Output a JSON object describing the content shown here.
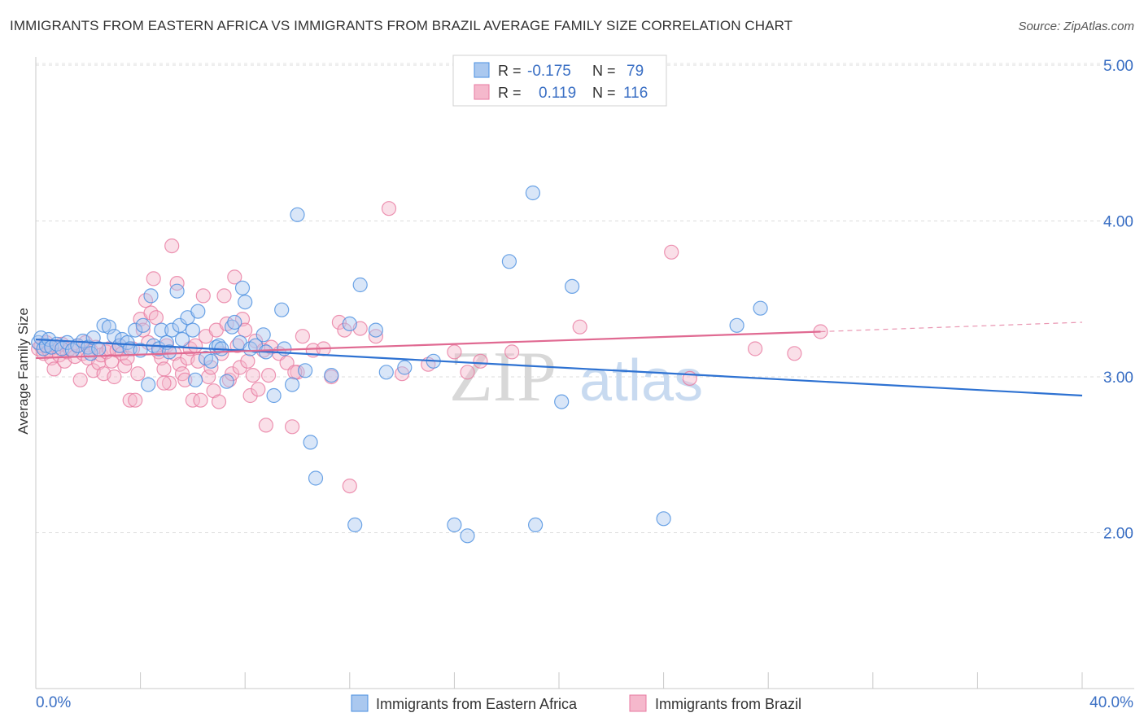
{
  "header": {
    "title": "IMMIGRANTS FROM EASTERN AFRICA VS IMMIGRANTS FROM BRAZIL AVERAGE FAMILY SIZE CORRELATION CHART",
    "source": "Source: ZipAtlas.com"
  },
  "watermark": {
    "zip": "ZIP",
    "atlas": "atlas"
  },
  "legend_box": {
    "rows": [
      {
        "r_label": "R =",
        "r_value": "-0.175",
        "n_label": "N =",
        "n_value": "79"
      },
      {
        "r_label": "R =",
        "r_value": "0.119",
        "n_label": "N =",
        "n_value": "116"
      }
    ]
  },
  "chart_data": {
    "type": "scatter",
    "ylabel": "Average Family Size",
    "x_tick_labels": [
      "0.0%",
      "40.0%"
    ],
    "y_tick_labels": [
      "5.00",
      "4.00",
      "3.00",
      "2.00"
    ],
    "y_ticks": [
      5.0,
      4.0,
      3.0,
      2.0
    ],
    "xlim": [
      0,
      40
    ],
    "ylim": [
      1.0,
      5.1
    ],
    "grid": true,
    "legend_position": "top-center",
    "colors": {
      "blue": "#4a8fe0",
      "pink": "#e87aa0",
      "blue_fill": "#aac8ef",
      "pink_fill": "#f5b8cc",
      "blue_line": "#2e72d2",
      "pink_line": "#e06a92"
    },
    "series": [
      {
        "name": "Immigrants from Eastern Africa",
        "color": "#4a8fe0",
        "trend": {
          "x": [
            0,
            40
          ],
          "y": [
            3.24,
            2.88
          ]
        },
        "points": [
          [
            0.1,
            3.22
          ],
          [
            0.2,
            3.25
          ],
          [
            0.3,
            3.18
          ],
          [
            0.4,
            3.2
          ],
          [
            0.5,
            3.24
          ],
          [
            0.6,
            3.19
          ],
          [
            0.8,
            3.21
          ],
          [
            1.0,
            3.18
          ],
          [
            1.2,
            3.22
          ],
          [
            1.4,
            3.17
          ],
          [
            1.6,
            3.2
          ],
          [
            1.8,
            3.23
          ],
          [
            2.0,
            3.19
          ],
          [
            2.1,
            3.15
          ],
          [
            2.2,
            3.25
          ],
          [
            2.4,
            3.18
          ],
          [
            2.6,
            3.33
          ],
          [
            2.8,
            3.32
          ],
          [
            3.0,
            3.26
          ],
          [
            3.2,
            3.2
          ],
          [
            3.3,
            3.24
          ],
          [
            3.5,
            3.22
          ],
          [
            3.6,
            3.18
          ],
          [
            3.8,
            3.3
          ],
          [
            4.0,
            3.17
          ],
          [
            4.1,
            3.33
          ],
          [
            4.3,
            2.95
          ],
          [
            4.4,
            3.52
          ],
          [
            4.5,
            3.2
          ],
          [
            4.7,
            3.18
          ],
          [
            4.8,
            3.3
          ],
          [
            5.0,
            3.22
          ],
          [
            5.1,
            3.16
          ],
          [
            5.2,
            3.3
          ],
          [
            5.4,
            3.55
          ],
          [
            5.5,
            3.33
          ],
          [
            5.6,
            3.24
          ],
          [
            5.8,
            3.38
          ],
          [
            6.0,
            3.3
          ],
          [
            6.1,
            2.98
          ],
          [
            6.2,
            3.42
          ],
          [
            6.5,
            3.12
          ],
          [
            6.7,
            3.1
          ],
          [
            6.9,
            3.19
          ],
          [
            7.0,
            3.2
          ],
          [
            7.1,
            3.18
          ],
          [
            7.3,
            2.97
          ],
          [
            7.5,
            3.32
          ],
          [
            7.6,
            3.35
          ],
          [
            7.8,
            3.22
          ],
          [
            7.9,
            3.57
          ],
          [
            8.0,
            3.48
          ],
          [
            8.2,
            3.18
          ],
          [
            8.4,
            3.2
          ],
          [
            8.7,
            3.27
          ],
          [
            8.8,
            3.16
          ],
          [
            9.1,
            2.88
          ],
          [
            9.4,
            3.43
          ],
          [
            9.5,
            3.18
          ],
          [
            9.8,
            2.95
          ],
          [
            10.0,
            4.04
          ],
          [
            10.3,
            3.04
          ],
          [
            10.5,
            2.58
          ],
          [
            10.7,
            2.35
          ],
          [
            11.3,
            3.01
          ],
          [
            12.0,
            3.34
          ],
          [
            12.2,
            2.05
          ],
          [
            12.4,
            3.59
          ],
          [
            13.0,
            3.3
          ],
          [
            13.4,
            3.03
          ],
          [
            14.1,
            3.06
          ],
          [
            15.2,
            3.1
          ],
          [
            16.0,
            2.05
          ],
          [
            16.5,
            1.98
          ],
          [
            18.1,
            3.74
          ],
          [
            19.0,
            4.18
          ],
          [
            19.1,
            2.05
          ],
          [
            20.1,
            2.84
          ],
          [
            20.5,
            3.58
          ],
          [
            24.0,
            2.09
          ],
          [
            26.8,
            3.33
          ],
          [
            27.7,
            3.44
          ]
        ]
      },
      {
        "name": "Immigrants from Brazil",
        "color": "#e87aa0",
        "trend": {
          "x": [
            0,
            30
          ],
          "y": [
            3.12,
            3.29
          ],
          "dashed_to": [
            40,
            3.35
          ]
        },
        "points": [
          [
            0.1,
            3.18
          ],
          [
            0.2,
            3.2
          ],
          [
            0.3,
            3.15
          ],
          [
            0.4,
            3.22
          ],
          [
            0.5,
            3.17
          ],
          [
            0.6,
            3.12
          ],
          [
            0.7,
            3.05
          ],
          [
            0.8,
            3.19
          ],
          [
            0.9,
            3.14
          ],
          [
            1.0,
            3.21
          ],
          [
            1.1,
            3.1
          ],
          [
            1.2,
            3.16
          ],
          [
            1.3,
            3.18
          ],
          [
            1.5,
            3.13
          ],
          [
            1.6,
            3.2
          ],
          [
            1.7,
            2.98
          ],
          [
            1.8,
            3.15
          ],
          [
            1.9,
            3.22
          ],
          [
            2.0,
            3.12
          ],
          [
            2.1,
            3.17
          ],
          [
            2.2,
            3.04
          ],
          [
            2.3,
            3.19
          ],
          [
            2.4,
            3.09
          ],
          [
            2.5,
            3.14
          ],
          [
            2.6,
            3.02
          ],
          [
            2.7,
            3.16
          ],
          [
            2.8,
            3.18
          ],
          [
            2.9,
            3.1
          ],
          [
            3.0,
            3.0
          ],
          [
            3.1,
            3.17
          ],
          [
            3.2,
            3.2
          ],
          [
            3.3,
            3.15
          ],
          [
            3.4,
            3.07
          ],
          [
            3.5,
            3.12
          ],
          [
            3.6,
            2.85
          ],
          [
            3.7,
            3.18
          ],
          [
            3.8,
            2.85
          ],
          [
            3.9,
            3.02
          ],
          [
            4.0,
            3.37
          ],
          [
            4.1,
            3.3
          ],
          [
            4.2,
            3.49
          ],
          [
            4.3,
            3.22
          ],
          [
            4.4,
            3.41
          ],
          [
            4.5,
            3.63
          ],
          [
            4.6,
            3.38
          ],
          [
            4.7,
            3.16
          ],
          [
            4.8,
            3.12
          ],
          [
            4.9,
            3.05
          ],
          [
            5.0,
            3.2
          ],
          [
            5.1,
            2.96
          ],
          [
            5.2,
            3.84
          ],
          [
            5.3,
            3.15
          ],
          [
            5.4,
            3.6
          ],
          [
            5.5,
            3.08
          ],
          [
            5.6,
            3.02
          ],
          [
            5.7,
            2.98
          ],
          [
            5.8,
            3.12
          ],
          [
            5.9,
            3.18
          ],
          [
            6.0,
            2.85
          ],
          [
            6.1,
            3.2
          ],
          [
            6.2,
            3.1
          ],
          [
            6.3,
            2.85
          ],
          [
            6.4,
            3.52
          ],
          [
            6.5,
            3.26
          ],
          [
            6.6,
            3.0
          ],
          [
            6.7,
            3.06
          ],
          [
            6.8,
            2.91
          ],
          [
            6.9,
            3.3
          ],
          [
            7.0,
            2.84
          ],
          [
            7.1,
            3.15
          ],
          [
            7.2,
            3.52
          ],
          [
            7.3,
            3.34
          ],
          [
            7.4,
            2.98
          ],
          [
            7.5,
            3.02
          ],
          [
            7.6,
            3.64
          ],
          [
            7.7,
            3.2
          ],
          [
            7.8,
            3.06
          ],
          [
            7.9,
            3.37
          ],
          [
            8.0,
            3.3
          ],
          [
            8.1,
            3.1
          ],
          [
            8.2,
            2.88
          ],
          [
            8.3,
            3.01
          ],
          [
            8.4,
            3.23
          ],
          [
            8.5,
            2.92
          ],
          [
            8.7,
            3.17
          ],
          [
            8.8,
            2.69
          ],
          [
            8.9,
            3.01
          ],
          [
            9.0,
            3.19
          ],
          [
            9.3,
            3.15
          ],
          [
            9.6,
            3.09
          ],
          [
            9.8,
            2.68
          ],
          [
            10.0,
            3.03
          ],
          [
            10.2,
            3.26
          ],
          [
            10.6,
            3.17
          ],
          [
            11.0,
            3.18
          ],
          [
            11.3,
            3.0
          ],
          [
            11.6,
            3.35
          ],
          [
            11.8,
            3.3
          ],
          [
            12.0,
            2.3
          ],
          [
            12.4,
            3.31
          ],
          [
            13.0,
            3.26
          ],
          [
            13.5,
            4.08
          ],
          [
            14.0,
            3.02
          ],
          [
            15.0,
            3.08
          ],
          [
            16.0,
            3.16
          ],
          [
            16.5,
            3.03
          ],
          [
            17.0,
            3.1
          ],
          [
            18.2,
            3.16
          ],
          [
            20.8,
            3.32
          ],
          [
            24.3,
            3.8
          ],
          [
            25.0,
            2.99
          ],
          [
            27.5,
            3.18
          ],
          [
            29.0,
            3.15
          ],
          [
            30.0,
            3.29
          ],
          [
            9.9,
            3.03
          ],
          [
            4.9,
            2.96
          ]
        ]
      }
    ]
  },
  "bottom_legend": {
    "items": [
      {
        "label": "Immigrants from Eastern Africa"
      },
      {
        "label": "Immigrants from Brazil"
      }
    ]
  }
}
